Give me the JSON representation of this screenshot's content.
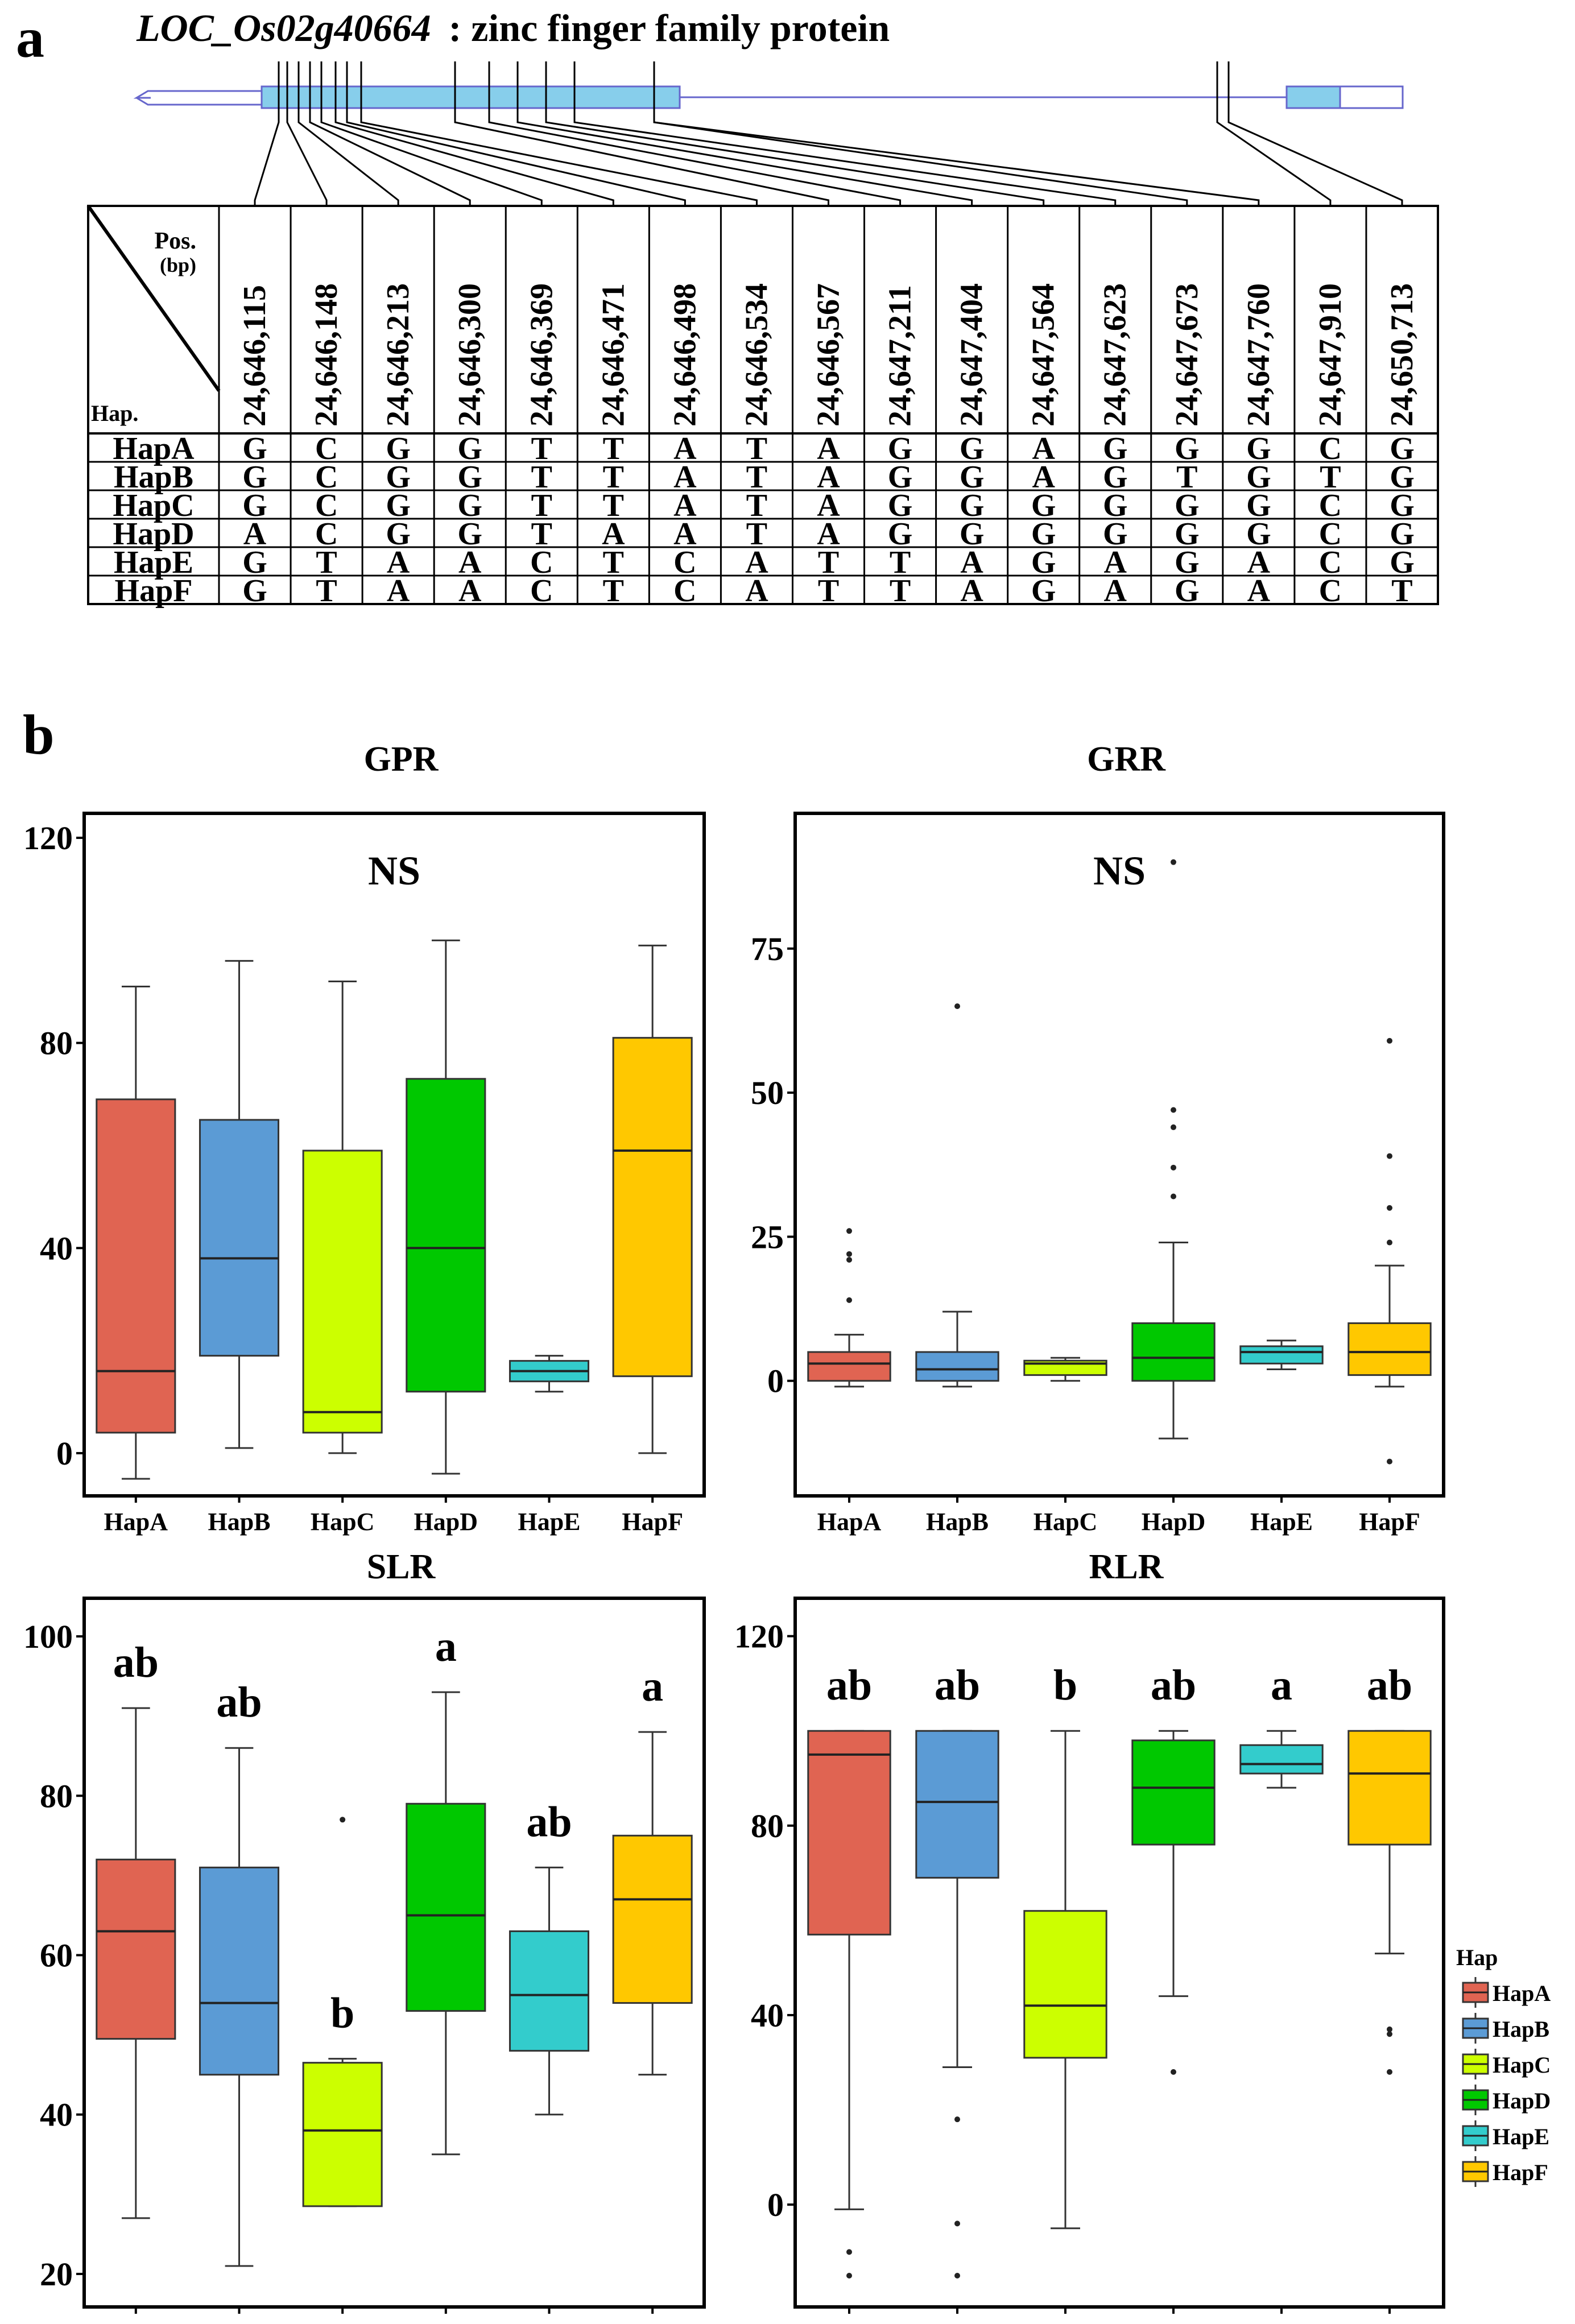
{
  "panel_a": {
    "label": "a",
    "gene_id": "LOC_Os02g40664",
    "gene_desc": ": zinc finger family protein",
    "corner_pos_label": "Pos.",
    "corner_bp_label": "(bp)",
    "corner_hap_label": "Hap.",
    "positions": [
      "24,646,115",
      "24,646,148",
      "24,646,213",
      "24,646,300",
      "24,646,369",
      "24,646,471",
      "24,646,498",
      "24,646,534",
      "24,646,567",
      "24,647,211",
      "24,647,404",
      "24,647,564",
      "24,647,623",
      "24,647,673",
      "24,647,760",
      "24,647,910",
      "24,650,713"
    ],
    "haplotypes": [
      {
        "name": "HapA",
        "alleles": [
          "G",
          "C",
          "G",
          "G",
          "T",
          "T",
          "A",
          "T",
          "A",
          "G",
          "G",
          "A",
          "G",
          "G",
          "G",
          "C",
          "G"
        ]
      },
      {
        "name": "HapB",
        "alleles": [
          "G",
          "C",
          "G",
          "G",
          "T",
          "T",
          "A",
          "T",
          "A",
          "G",
          "G",
          "A",
          "G",
          "T",
          "G",
          "T",
          "G"
        ]
      },
      {
        "name": "HapC",
        "alleles": [
          "G",
          "C",
          "G",
          "G",
          "T",
          "T",
          "A",
          "T",
          "A",
          "G",
          "G",
          "G",
          "G",
          "G",
          "G",
          "C",
          "G"
        ]
      },
      {
        "name": "HapD",
        "alleles": [
          "A",
          "C",
          "G",
          "G",
          "T",
          "A",
          "A",
          "T",
          "A",
          "G",
          "G",
          "G",
          "G",
          "G",
          "G",
          "C",
          "G"
        ]
      },
      {
        "name": "HapE",
        "alleles": [
          "G",
          "T",
          "A",
          "A",
          "C",
          "T",
          "C",
          "A",
          "T",
          "T",
          "A",
          "G",
          "A",
          "G",
          "A",
          "C",
          "G"
        ]
      },
      {
        "name": "HapF",
        "alleles": [
          "G",
          "T",
          "A",
          "A",
          "C",
          "T",
          "C",
          "A",
          "T",
          "T",
          "A",
          "G",
          "A",
          "G",
          "A",
          "C",
          "T"
        ]
      }
    ]
  },
  "panel_b": {
    "label": "b",
    "legend_title": "Hap",
    "legend_items": [
      "HapA",
      "HapB",
      "HapC",
      "HapD",
      "HapE",
      "HapF"
    ]
  },
  "colors": {
    "HapA": "#e06452",
    "HapB": "#5b9bd5",
    "HapC": "#ccff00",
    "HapD": "#00c800",
    "HapE": "#33cccc",
    "HapF": "#ffc800",
    "exon": "#87ceeb",
    "gene_line": "#6666cc"
  },
  "chart_data": [
    {
      "type": "box",
      "title": "GPR",
      "annotation": "NS",
      "ylim": [
        -5,
        122
      ],
      "ticks": [
        0,
        40,
        80,
        120
      ],
      "categories": [
        "HapA",
        "HapB",
        "HapC",
        "HapD",
        "HapE",
        "HapF"
      ],
      "series": [
        {
          "name": "HapA",
          "min": -5,
          "q1": 4,
          "median": 16,
          "q3": 69,
          "max": 91,
          "outliers": []
        },
        {
          "name": "HapB",
          "min": 1,
          "q1": 19,
          "median": 38,
          "q3": 65,
          "max": 96,
          "outliers": []
        },
        {
          "name": "HapC",
          "min": 0,
          "q1": 4,
          "median": 8,
          "q3": 59,
          "max": 92,
          "outliers": []
        },
        {
          "name": "HapD",
          "min": -4,
          "q1": 12,
          "median": 40,
          "q3": 73,
          "max": 100,
          "outliers": []
        },
        {
          "name": "HapE",
          "min": 12,
          "q1": 14,
          "median": 16,
          "q3": 18,
          "max": 19,
          "outliers": []
        },
        {
          "name": "HapF",
          "min": 0,
          "q1": 15,
          "median": 59,
          "q3": 81,
          "max": 99,
          "outliers": []
        }
      ]
    },
    {
      "type": "box",
      "title": "GRR",
      "annotation": "NS",
      "ylim": [
        -17,
        96
      ],
      "ticks": [
        0,
        25,
        50,
        75
      ],
      "categories": [
        "HapA",
        "HapB",
        "HapC",
        "HapD",
        "HapE",
        "HapF"
      ],
      "series": [
        {
          "name": "HapA",
          "min": -1,
          "q1": 0,
          "median": 3,
          "q3": 5,
          "max": 8,
          "outliers": [
            14,
            21,
            22,
            26
          ]
        },
        {
          "name": "HapB",
          "min": -1,
          "q1": 0,
          "median": 2,
          "q3": 5,
          "max": 12,
          "outliers": [
            65
          ]
        },
        {
          "name": "HapC",
          "min": 0,
          "q1": 1,
          "median": 3,
          "q3": 3.5,
          "max": 4,
          "outliers": []
        },
        {
          "name": "HapD",
          "min": -10,
          "q1": 0,
          "median": 4,
          "q3": 10,
          "max": 24,
          "outliers": [
            32,
            37,
            44,
            47,
            90
          ]
        },
        {
          "name": "HapE",
          "min": 2,
          "q1": 3,
          "median": 5,
          "q3": 6,
          "max": 7,
          "outliers": []
        },
        {
          "name": "HapF",
          "min": -1,
          "q1": 1,
          "median": 5,
          "q3": 10,
          "max": 20,
          "outliers": [
            -14,
            24,
            30,
            39,
            59
          ]
        }
      ]
    },
    {
      "type": "box",
      "title": "SLR",
      "ylim": [
        18,
        103
      ],
      "ticks": [
        20,
        40,
        60,
        80,
        100
      ],
      "categories": [
        "HapA",
        "HapB",
        "HapC",
        "HapD",
        "HapE",
        "HapF"
      ],
      "letters": [
        "ab",
        "ab",
        "b",
        "a",
        "ab",
        "a"
      ],
      "series": [
        {
          "name": "HapA",
          "min": 27,
          "q1": 49.5,
          "median": 63,
          "q3": 72,
          "max": 91,
          "outliers": []
        },
        {
          "name": "HapB",
          "min": 21,
          "q1": 45,
          "median": 54,
          "q3": 71,
          "max": 86,
          "outliers": []
        },
        {
          "name": "HapC",
          "min": 28.5,
          "q1": 28.5,
          "median": 38,
          "q3": 46.5,
          "max": 47,
          "outliers": [
            77
          ]
        },
        {
          "name": "HapD",
          "min": 35,
          "q1": 53,
          "median": 65,
          "q3": 79,
          "max": 93,
          "outliers": []
        },
        {
          "name": "HapE",
          "min": 40,
          "q1": 48,
          "median": 55,
          "q3": 63,
          "max": 71,
          "outliers": []
        },
        {
          "name": "HapF",
          "min": 45,
          "q1": 54,
          "median": 67,
          "q3": 75,
          "max": 88,
          "outliers": []
        }
      ]
    },
    {
      "type": "box",
      "title": "RLR",
      "ylim": [
        -18,
        125
      ],
      "ticks": [
        0,
        40,
        80,
        120
      ],
      "categories": [
        "HapA",
        "HapB",
        "HapC",
        "HapD",
        "HapE",
        "HapF"
      ],
      "letters": [
        "ab",
        "ab",
        "b",
        "ab",
        "a",
        "ab"
      ],
      "series": [
        {
          "name": "HapA",
          "min": -1,
          "q1": 57,
          "median": 95,
          "q3": 100,
          "max": 100,
          "outliers": [
            -10,
            -15
          ]
        },
        {
          "name": "HapB",
          "min": 29,
          "q1": 69,
          "median": 85,
          "q3": 100,
          "max": 100,
          "outliers": [
            18,
            -4,
            -15
          ]
        },
        {
          "name": "HapC",
          "min": -5,
          "q1": 31,
          "median": 42,
          "q3": 62,
          "max": 100,
          "outliers": []
        },
        {
          "name": "HapD",
          "min": 44,
          "q1": 76,
          "median": 88,
          "q3": 98,
          "max": 100,
          "outliers": [
            28
          ]
        },
        {
          "name": "HapE",
          "min": 88,
          "q1": 91,
          "median": 93,
          "q3": 97,
          "max": 100,
          "outliers": []
        },
        {
          "name": "HapF",
          "min": 53,
          "q1": 76,
          "median": 91,
          "q3": 100,
          "max": 100,
          "outliers": [
            36,
            37,
            28
          ]
        }
      ]
    }
  ]
}
